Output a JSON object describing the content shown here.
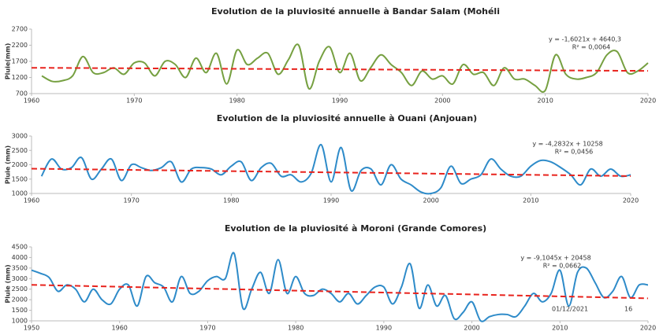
{
  "chart_data": [
    {
      "type": "line",
      "title": "Evolution de la pluviosité annuelle à Bandar Salam (Mohéli",
      "y_label": "Pluie(mm)",
      "color": "#76a041",
      "x": [
        1961,
        1962,
        1963,
        1964,
        1965,
        1966,
        1967,
        1968,
        1969,
        1970,
        1971,
        1972,
        1973,
        1974,
        1975,
        1976,
        1977,
        1978,
        1979,
        1980,
        1981,
        1982,
        1983,
        1984,
        1985,
        1986,
        1987,
        1988,
        1989,
        1990,
        1991,
        1992,
        1993,
        1994,
        1995,
        1996,
        1997,
        1998,
        1999,
        2000,
        2001,
        2002,
        2003,
        2004,
        2005,
        2006,
        2007,
        2008,
        2009,
        2010,
        2011,
        2012,
        2013,
        2014,
        2015,
        2016,
        2017,
        2018,
        2019,
        2020
      ],
      "values": [
        1250,
        1080,
        1100,
        1250,
        1850,
        1350,
        1350,
        1500,
        1300,
        1650,
        1650,
        1250,
        1700,
        1600,
        1200,
        1800,
        1350,
        1950,
        1000,
        2050,
        1600,
        1800,
        1950,
        1300,
        1750,
        2200,
        850,
        1700,
        2150,
        1350,
        1950,
        1100,
        1500,
        1900,
        1600,
        1350,
        950,
        1400,
        1150,
        1250,
        1000,
        1600,
        1300,
        1350,
        950,
        1500,
        1150,
        1150,
        950,
        800,
        1900,
        1300,
        1150,
        1200,
        1350,
        1900,
        2000,
        1350,
        1400,
        1650
      ],
      "xlim": [
        1960,
        2020
      ],
      "xticks": [
        1960,
        1970,
        1980,
        1990,
        2000,
        2010,
        2020
      ],
      "ylim": [
        700,
        2700
      ],
      "yticks": [
        700,
        1200,
        1700,
        2200,
        2700
      ],
      "trend": {
        "slope": -1.6021,
        "intercept": 4640.3,
        "label": "y = -1,6021x + 4640,3",
        "r2": 0.0064,
        "r2_label": "R² = 0,0064",
        "color": "#e8231d"
      }
    },
    {
      "type": "line",
      "title": "Evolution de la pluviosité annuelle à Ouani  (Anjouan)",
      "y_label": "Pluie (mm)",
      "color": "#2e8bc9",
      "x": [
        1961,
        1962,
        1963,
        1964,
        1965,
        1966,
        1967,
        1968,
        1969,
        1970,
        1971,
        1972,
        1973,
        1974,
        1975,
        1976,
        1977,
        1978,
        1979,
        1980,
        1981,
        1982,
        1983,
        1984,
        1985,
        1986,
        1987,
        1988,
        1989,
        1990,
        1991,
        1992,
        1993,
        1994,
        1995,
        1996,
        1997,
        1998,
        1999,
        2000,
        2001,
        2002,
        2003,
        2004,
        2005,
        2006,
        2007,
        2008,
        2009,
        2010,
        2011,
        2012,
        2013,
        2014,
        2015,
        2016,
        2017,
        2018,
        2019,
        2020
      ],
      "values": [
        1600,
        2200,
        1850,
        1900,
        2250,
        1500,
        1850,
        2200,
        1450,
        2000,
        1900,
        1800,
        1900,
        2100,
        1400,
        1850,
        1900,
        1850,
        1650,
        1950,
        2100,
        1450,
        1900,
        2050,
        1600,
        1650,
        1400,
        1700,
        2700,
        1400,
        2600,
        1100,
        1800,
        1850,
        1300,
        2000,
        1500,
        1300,
        1050,
        1000,
        1200,
        1950,
        1350,
        1500,
        1650,
        2200,
        1850,
        1600,
        1600,
        1950,
        2150,
        2100,
        1900,
        1650,
        1300,
        1850,
        1600,
        1850,
        1600,
        1650
      ],
      "xlim": [
        1960,
        2020
      ],
      "xticks": [
        1960,
        1970,
        1980,
        1990,
        2000,
        2010,
        2020
      ],
      "ylim": [
        1000,
        3000
      ],
      "yticks": [
        1000,
        1500,
        2000,
        2500,
        3000
      ],
      "trend": {
        "slope": -4.2832,
        "intercept": 10258,
        "label": "y = -4,2832x + 10258",
        "r2": 0.0456,
        "r2_label": "R² = 0,0456",
        "color": "#e8231d"
      }
    },
    {
      "type": "line",
      "title": "Evolution de la pluviosité à Moroni (Grande Comores)",
      "y_label": "Pluie (mm)",
      "color": "#2e8bc9",
      "x": [
        1950,
        1951,
        1952,
        1953,
        1954,
        1955,
        1956,
        1957,
        1958,
        1959,
        1960,
        1961,
        1962,
        1963,
        1964,
        1965,
        1966,
        1967,
        1968,
        1969,
        1970,
        1971,
        1972,
        1973,
        1974,
        1975,
        1976,
        1977,
        1978,
        1979,
        1980,
        1981,
        1982,
        1983,
        1984,
        1985,
        1986,
        1987,
        1988,
        1989,
        1990,
        1991,
        1992,
        1993,
        1994,
        1995,
        1996,
        1997,
        1998,
        1999,
        2000,
        2001,
        2002,
        2003,
        2004,
        2005,
        2006,
        2007,
        2008,
        2009,
        2010,
        2011,
        2012,
        2013,
        2014,
        2015,
        2016,
        2017,
        2018,
        2019,
        2020
      ],
      "values": [
        3400,
        3250,
        3050,
        2400,
        2700,
        2500,
        1900,
        2500,
        2000,
        1800,
        2500,
        2700,
        1700,
        3100,
        2800,
        2600,
        1900,
        3100,
        2300,
        2400,
        2900,
        3100,
        3000,
        4200,
        1600,
        2500,
        3300,
        2300,
        3900,
        2300,
        3100,
        2300,
        2200,
        2500,
        2300,
        1900,
        2300,
        1800,
        2200,
        2600,
        2600,
        1800,
        2600,
        3700,
        1600,
        2700,
        1700,
        2200,
        1100,
        1400,
        1900,
        1000,
        1200,
        1300,
        1300,
        1200,
        1700,
        2300,
        1900,
        2300,
        3400,
        1700,
        3300,
        3500,
        2800,
        2100,
        2400,
        3100,
        2100,
        2700,
        2700
      ],
      "xlim": [
        1950,
        2020
      ],
      "xticks": [
        1950,
        1960,
        1970,
        1980,
        1990,
        2000,
        2010,
        2020
      ],
      "ylim": [
        1000,
        4500
      ],
      "yticks": [
        1000,
        1500,
        2000,
        2500,
        3000,
        3500,
        4000,
        4500
      ],
      "trend": {
        "slope": -9.1045,
        "intercept": 20458,
        "label": "y = -9,1045x + 20458",
        "r2": 0.0662,
        "r2_label": "R² = 0,0662",
        "color": "#e8231d"
      }
    }
  ],
  "footer": {
    "date": "01/12/2021",
    "page": "16"
  }
}
